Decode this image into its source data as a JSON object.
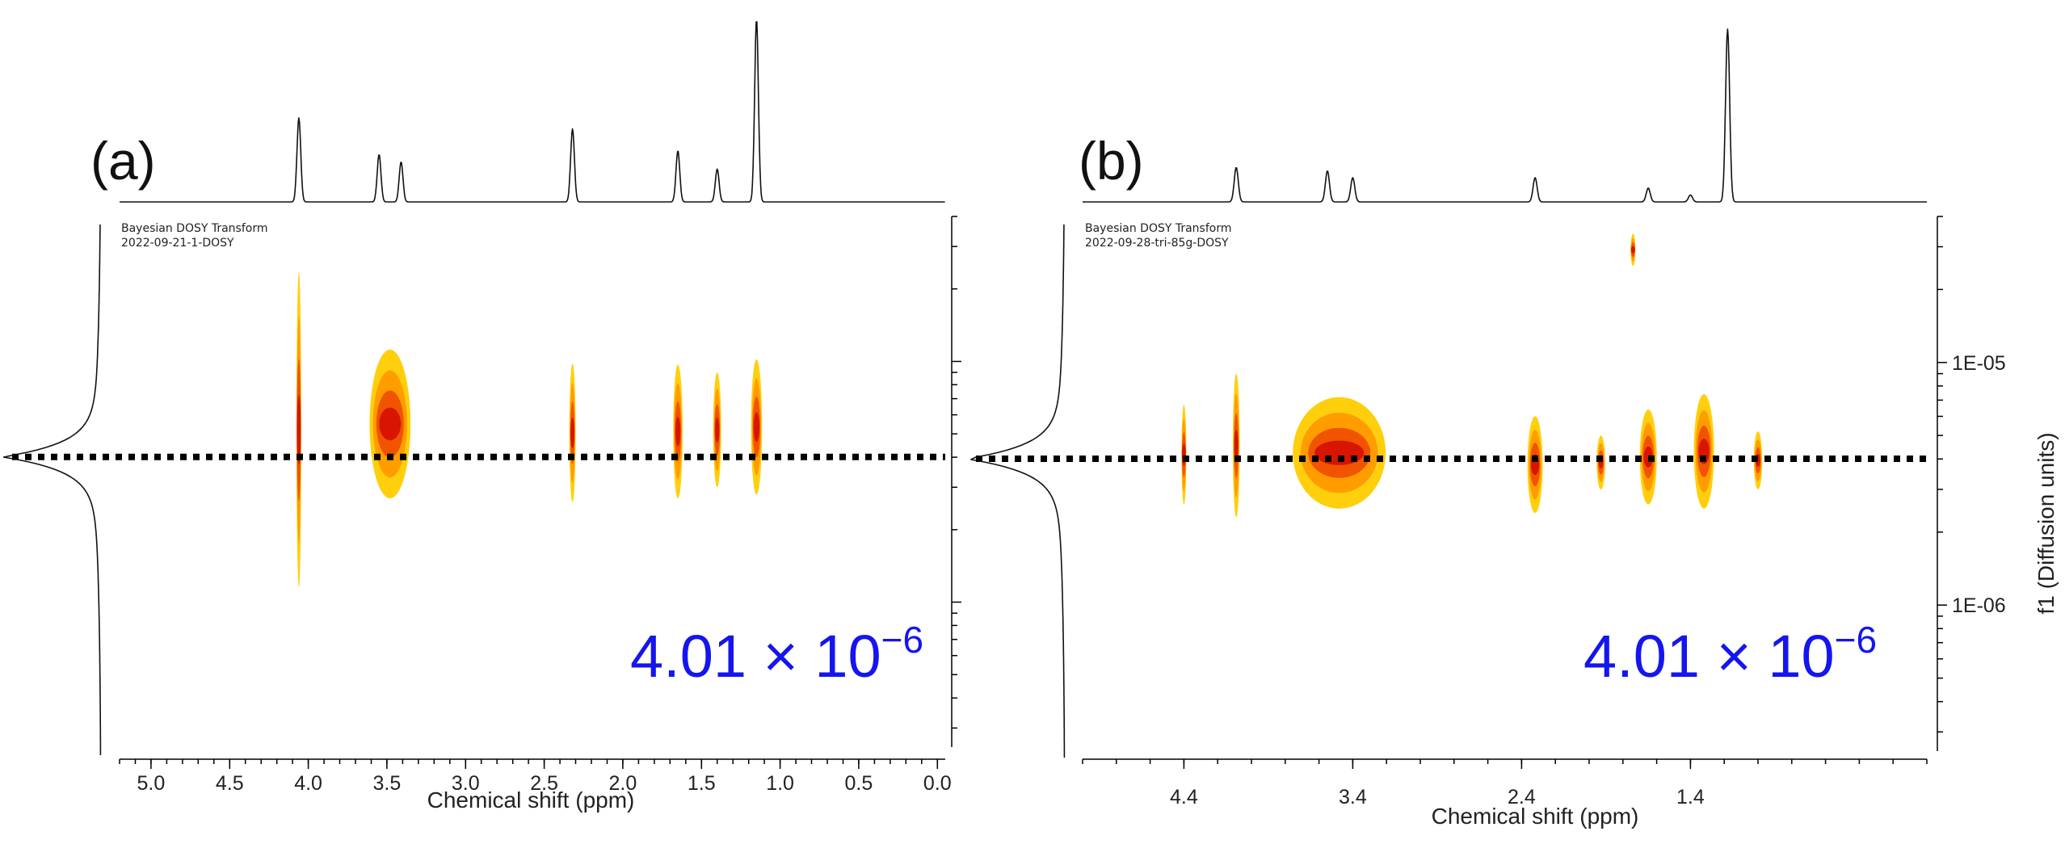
{
  "chart_data": [
    {
      "type": "dosy",
      "panel_label": "(a)",
      "info_line1": "Bayesian DOSY Transform",
      "info_line2": "2022-09-21-1-DOSY",
      "xlabel": "Chemical shift (ppm)",
      "x_ticks": [
        "5.0",
        "4.5",
        "4.0",
        "3.5",
        "3.0",
        "2.5",
        "2.0",
        "1.5",
        "1.0",
        "0.5",
        "0.0"
      ],
      "x_range": [
        5.2,
        -0.05
      ],
      "y_range": [
        4e-05,
        2.5e-07
      ],
      "diffusion_value": 4.01e-06,
      "annotation": "4.01 × 10",
      "annotation_exp": "−6",
      "peaks": [
        {
          "ppm": 4.06,
          "height": 0.46
        },
        {
          "ppm": 3.55,
          "height": 0.26
        },
        {
          "ppm": 3.41,
          "height": 0.22
        },
        {
          "ppm": 2.32,
          "height": 0.4
        },
        {
          "ppm": 1.65,
          "height": 0.28
        },
        {
          "ppm": 1.4,
          "height": 0.18
        },
        {
          "ppm": 1.15,
          "height": 1.0
        }
      ],
      "contours": [
        {
          "ppm": 4.06,
          "low": 1.15e-06,
          "high": 2.35e-05,
          "width": 0.03
        },
        {
          "ppm": 3.48,
          "low": 2.7e-06,
          "high": 1.12e-05,
          "width": 0.26
        },
        {
          "ppm": 2.32,
          "low": 2.6e-06,
          "high": 9.8e-06,
          "width": 0.04
        },
        {
          "ppm": 1.65,
          "low": 2.7e-06,
          "high": 9.7e-06,
          "width": 0.06
        },
        {
          "ppm": 1.4,
          "low": 3e-06,
          "high": 9e-06,
          "width": 0.05
        },
        {
          "ppm": 1.15,
          "low": 2.8e-06,
          "high": 1.02e-05,
          "width": 0.07
        }
      ]
    },
    {
      "type": "dosy",
      "panel_label": "(b)",
      "info_line1": "Bayesian DOSY Transform",
      "info_line2": "2022-09-28-tri-85g-DOSY",
      "xlabel": "Chemical shift (ppm)",
      "ylabel": "f1 (Diffusion units)",
      "x_ticks": [
        "4.4",
        "3.4",
        "2.4",
        "1.4"
      ],
      "y_ticks": [
        "1E-05",
        "1E-06"
      ],
      "x_range": [
        5.0,
        0.0
      ],
      "y_range": [
        4e-05,
        2.5e-07
      ],
      "diffusion_value": 4.01e-06,
      "annotation": "4.01 × 10",
      "annotation_exp": "−6",
      "peaks": [
        {
          "ppm": 4.09,
          "height": 0.2
        },
        {
          "ppm": 3.55,
          "height": 0.18
        },
        {
          "ppm": 3.4,
          "height": 0.14
        },
        {
          "ppm": 2.32,
          "height": 0.14
        },
        {
          "ppm": 1.65,
          "height": 0.08
        },
        {
          "ppm": 1.4,
          "height": 0.04
        },
        {
          "ppm": 1.18,
          "height": 1.0
        }
      ],
      "contours": [
        {
          "ppm": 4.4,
          "low": 2.6e-06,
          "high": 6.7e-06,
          "width": 0.02
        },
        {
          "ppm": 4.09,
          "low": 2.3e-06,
          "high": 9e-06,
          "width": 0.04
        },
        {
          "ppm": 3.48,
          "low": 2.5e-06,
          "high": 7.2e-06,
          "width": 0.55
        },
        {
          "ppm": 2.32,
          "low": 2.4e-06,
          "high": 6e-06,
          "width": 0.09
        },
        {
          "ppm": 1.93,
          "low": 3e-06,
          "high": 5e-06,
          "width": 0.05
        },
        {
          "ppm": 1.65,
          "low": 2.6e-06,
          "high": 6.4e-06,
          "width": 0.1
        },
        {
          "ppm": 1.32,
          "low": 2.5e-06,
          "high": 7.4e-06,
          "width": 0.12
        },
        {
          "ppm": 1.0,
          "low": 3e-06,
          "high": 5.2e-06,
          "width": 0.05
        },
        {
          "ppm": 1.74,
          "low": 2.5e-05,
          "high": 3.4e-05,
          "width": 0.01
        }
      ]
    }
  ]
}
